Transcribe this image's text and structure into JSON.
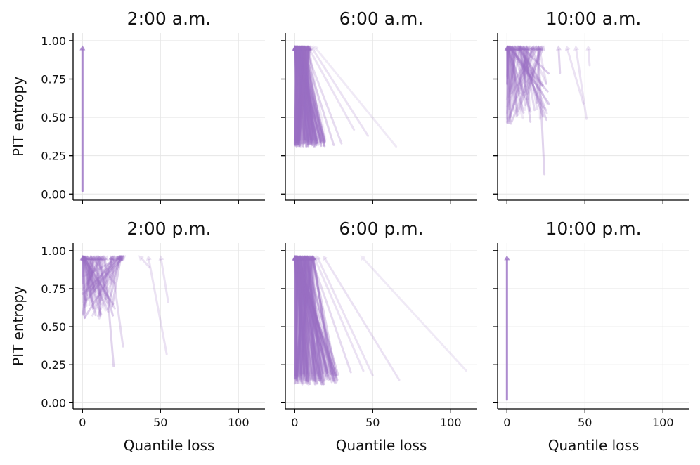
{
  "figure": {
    "ylabel": "PIT entropy",
    "xlabel": "Quantile loss"
  },
  "chart_data": [
    {
      "type": "scatter",
      "title": "2:00 a.m.",
      "xlabel": "",
      "ylabel": "PIT entropy",
      "xlim": [
        -6,
        117
      ],
      "ylim": [
        -0.04,
        1.05
      ],
      "xticks": [
        0,
        50,
        100
      ],
      "yticks": [
        "0.00",
        "0.25",
        "0.50",
        "0.75",
        "1.00"
      ],
      "xticklabels_visible": false,
      "yticklabels_visible": true,
      "grid": true,
      "arrows": [
        {
          "from": [
            0,
            0.02
          ],
          "to": [
            0,
            0.97
          ],
          "alpha": 0.8
        }
      ],
      "n_arrows_estimate": 1
    },
    {
      "type": "scatter",
      "title": "6:00 a.m.",
      "xlabel": "",
      "ylabel": "",
      "xlim": [
        -6,
        117
      ],
      "ylim": [
        -0.04,
        1.05
      ],
      "xticks": [
        0,
        50,
        100
      ],
      "yticks": [
        "0.00",
        "0.25",
        "0.50",
        "0.75",
        "1.00"
      ],
      "xticklabels_visible": false,
      "yticklabels_visible": false,
      "grid": true,
      "arrows": [
        {
          "from": [
            65,
            0.31
          ],
          "to": [
            12,
            0.97
          ],
          "alpha": 0.15
        },
        {
          "from": [
            47,
            0.38
          ],
          "to": [
            10,
            0.97
          ],
          "alpha": 0.2
        },
        {
          "from": [
            38,
            0.42
          ],
          "to": [
            8,
            0.97
          ],
          "alpha": 0.2
        },
        {
          "from": [
            30,
            0.33
          ],
          "to": [
            6,
            0.97
          ],
          "alpha": 0.25
        },
        {
          "from": [
            25,
            0.32
          ],
          "to": [
            5,
            0.97
          ],
          "alpha": 0.3
        }
      ],
      "bulk": {
        "from_x": [
          0,
          20
        ],
        "from_y": [
          0.31,
          0.36
        ],
        "to_x": [
          0,
          10
        ],
        "to_y": 0.97
      },
      "n_arrows_estimate": 180
    },
    {
      "type": "scatter",
      "title": "10:00 a.m.",
      "xlabel": "",
      "ylabel": "",
      "xlim": [
        -6,
        117
      ],
      "ylim": [
        -0.04,
        1.05
      ],
      "xticks": [
        0,
        50,
        100
      ],
      "yticks": [
        "0.00",
        "0.25",
        "0.50",
        "0.75",
        "1.00"
      ],
      "xticklabels_visible": false,
      "yticklabels_visible": false,
      "grid": true,
      "arrows": [
        {
          "from": [
            53,
            0.84
          ],
          "to": [
            52,
            0.97
          ],
          "alpha": 0.2
        },
        {
          "from": [
            51,
            0.49
          ],
          "to": [
            44,
            0.97
          ],
          "alpha": 0.2
        },
        {
          "from": [
            49,
            0.59
          ],
          "to": [
            38,
            0.97
          ],
          "alpha": 0.2
        },
        {
          "from": [
            34,
            0.79
          ],
          "to": [
            33,
            0.97
          ],
          "alpha": 0.3
        },
        {
          "from": [
            24,
            0.13
          ],
          "to": [
            20,
            0.97
          ],
          "alpha": 0.3
        }
      ],
      "bulk": {
        "from_x": [
          0,
          28
        ],
        "from_y": [
          0.45,
          0.8
        ],
        "to_x": [
          0,
          24
        ],
        "to_y": 0.97
      },
      "n_arrows_estimate": 80
    },
    {
      "type": "scatter",
      "title": "2:00 p.m.",
      "xlabel": "Quantile loss",
      "ylabel": "PIT entropy",
      "xlim": [
        -6,
        117
      ],
      "ylim": [
        -0.04,
        1.05
      ],
      "xticks": [
        0,
        50,
        100
      ],
      "yticks": [
        "0.00",
        "0.25",
        "0.50",
        "0.75",
        "1.00"
      ],
      "xticklabels_visible": true,
      "yticklabels_visible": true,
      "grid": true,
      "arrows": [
        {
          "from": [
            55,
            0.66
          ],
          "to": [
            50,
            0.97
          ],
          "alpha": 0.2
        },
        {
          "from": [
            54,
            0.32
          ],
          "to": [
            42,
            0.97
          ],
          "alpha": 0.2
        },
        {
          "from": [
            43,
            0.89
          ],
          "to": [
            36,
            0.97
          ],
          "alpha": 0.2
        },
        {
          "from": [
            26,
            0.37
          ],
          "to": [
            18,
            0.97
          ],
          "alpha": 0.25
        },
        {
          "from": [
            20,
            0.24
          ],
          "to": [
            14,
            0.97
          ],
          "alpha": 0.3
        }
      ],
      "bulk": {
        "from_x": [
          0,
          22
        ],
        "from_y": [
          0.55,
          0.85
        ],
        "to_x": [
          0,
          30
        ],
        "to_y": 0.97
      },
      "n_arrows_estimate": 80
    },
    {
      "type": "scatter",
      "title": "6:00 p.m.",
      "xlabel": "Quantile loss",
      "ylabel": "",
      "xlim": [
        -6,
        117
      ],
      "ylim": [
        -0.04,
        1.05
      ],
      "xticks": [
        0,
        50,
        100
      ],
      "yticks": [
        "0.00",
        "0.25",
        "0.50",
        "0.75",
        "1.00"
      ],
      "xticklabels_visible": true,
      "yticklabels_visible": false,
      "grid": true,
      "arrows": [
        {
          "from": [
            110,
            0.21
          ],
          "to": [
            42,
            0.97
          ],
          "alpha": 0.15
        },
        {
          "from": [
            67,
            0.15
          ],
          "to": [
            18,
            0.97
          ],
          "alpha": 0.2
        },
        {
          "from": [
            50,
            0.18
          ],
          "to": [
            14,
            0.97
          ],
          "alpha": 0.2
        },
        {
          "from": [
            44,
            0.21
          ],
          "to": [
            12,
            0.97
          ],
          "alpha": 0.2
        },
        {
          "from": [
            36,
            0.2
          ],
          "to": [
            10,
            0.97
          ],
          "alpha": 0.25
        }
      ],
      "bulk": {
        "from_x": [
          0,
          28
        ],
        "from_y": [
          0.12,
          0.2
        ],
        "to_x": [
          0,
          12
        ],
        "to_y": 0.97
      },
      "n_arrows_estimate": 220
    },
    {
      "type": "scatter",
      "title": "10:00 p.m.",
      "xlabel": "Quantile loss",
      "ylabel": "",
      "xlim": [
        -6,
        117
      ],
      "ylim": [
        -0.04,
        1.05
      ],
      "xticks": [
        0,
        50,
        100
      ],
      "yticks": [
        "0.00",
        "0.25",
        "0.50",
        "0.75",
        "1.00"
      ],
      "xticklabels_visible": true,
      "yticklabels_visible": false,
      "grid": true,
      "arrows": [
        {
          "from": [
            0,
            0.02
          ],
          "to": [
            0,
            0.97
          ],
          "alpha": 0.8
        }
      ],
      "n_arrows_estimate": 1
    }
  ],
  "colors": {
    "arrow": "#9a6fc4",
    "grid": "#e6e6e6",
    "axis": "#000000"
  }
}
